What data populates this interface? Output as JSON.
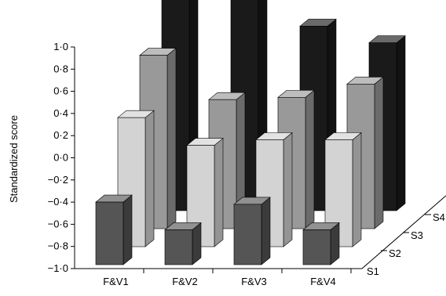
{
  "chart_data": {
    "type": "bar",
    "subtype": "3d-grouped-bar",
    "title": "",
    "ylabel": "Standardized score",
    "xlabel": "",
    "ylim": [
      -1.0,
      1.0
    ],
    "yticks": [
      "−1·0",
      "−0·8",
      "−0·6",
      "−0·4",
      "−0·2",
      "0·0",
      "0·2",
      "0·4",
      "0·6",
      "0·8",
      "1·0"
    ],
    "categories": [
      "F&V1",
      "F&V2",
      "F&V3",
      "F&V4"
    ],
    "depth_labels": [
      "S1",
      "S2",
      "S3",
      "S4"
    ],
    "series": [
      {
        "name": "S1",
        "color": "#555555",
        "values": [
          -0.4,
          -0.65,
          -0.42,
          -0.65
        ]
      },
      {
        "name": "S2",
        "color": "#d3d3d3",
        "values": [
          0.2,
          -0.05,
          0.0,
          0.0
        ]
      },
      {
        "name": "S3",
        "color": "#999999",
        "values": [
          0.6,
          0.2,
          0.22,
          0.34
        ]
      },
      {
        "name": "S4",
        "color": "#1a1a1a",
        "values": [
          1.0,
          1.0,
          0.7,
          0.55
        ]
      }
    ],
    "grid": false,
    "legend": "none"
  }
}
